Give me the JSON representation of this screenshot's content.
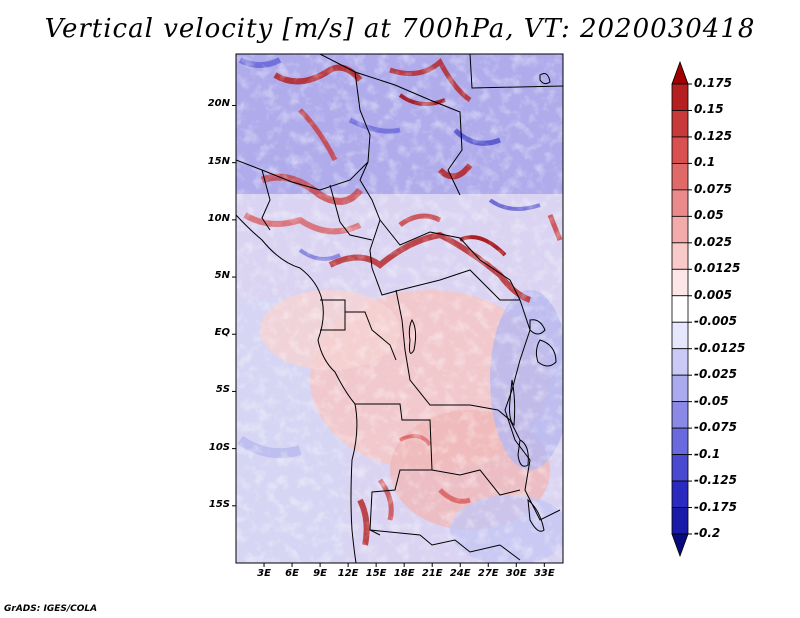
{
  "title": "Vertical velocity [m/s] at 700hPa, VT: 2020030418",
  "footer": "GrADS: IGES/COLA",
  "map": {
    "lat_labels": [
      "20N",
      "15N",
      "10N",
      "5N",
      "EQ",
      "5S",
      "10S",
      "15S"
    ],
    "lat_values": [
      20,
      15,
      10,
      5,
      0,
      -5,
      -10,
      -15
    ],
    "lon_labels": [
      "3E",
      "6E",
      "9E",
      "12E",
      "15E",
      "18E",
      "21E",
      "24E",
      "27E",
      "30E",
      "33E"
    ],
    "lon_values": [
      3,
      6,
      9,
      12,
      15,
      18,
      21,
      24,
      27,
      30,
      33
    ],
    "lat_range": [
      -20,
      24.5
    ],
    "lon_range": [
      0,
      35
    ]
  },
  "colorbar": {
    "labels": [
      "0.175",
      "0.15",
      "0.125",
      "0.1",
      "0.075",
      "0.05",
      "0.025",
      "0.0125",
      "0.005",
      "-0.005",
      "-0.0125",
      "-0.025",
      "-0.05",
      "-0.075",
      "-0.1",
      "-0.125",
      "-0.175",
      "-0.2"
    ],
    "colors": [
      "#a00000",
      "#b42020",
      "#c83a3a",
      "#d85050",
      "#e06a6a",
      "#ea8a8a",
      "#f2aaaa",
      "#f8caca",
      "#fce6e6",
      "#ffffff",
      "#e6e6fc",
      "#cacaf6",
      "#aaaaee",
      "#8a8ae6",
      "#6a6ade",
      "#4a4ad0",
      "#2a2ac0",
      "#1a1aa8",
      "#0a0a80"
    ]
  }
}
